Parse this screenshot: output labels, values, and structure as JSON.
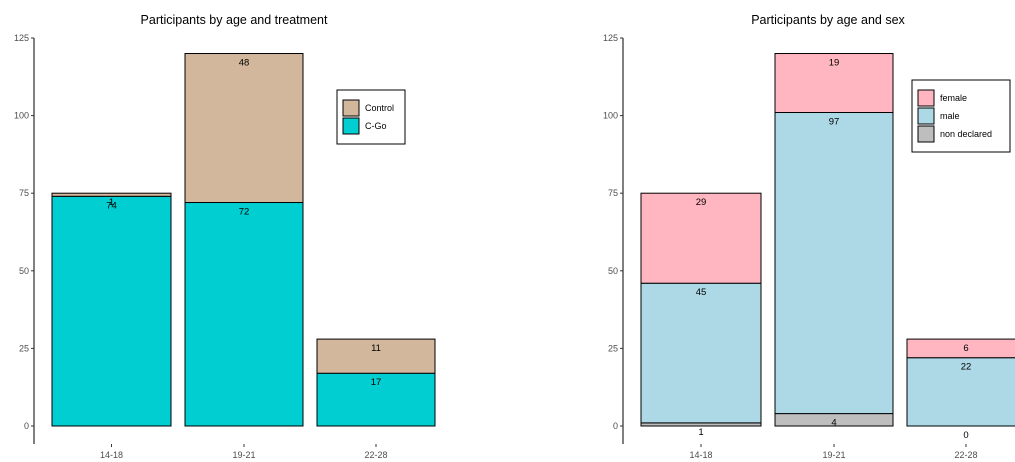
{
  "chart_data": [
    {
      "type": "bar",
      "stacked": true,
      "title": "Participants by age and treatment",
      "xlabel": "",
      "ylabel": "",
      "categories": [
        "14-18",
        "19-21",
        "22-28"
      ],
      "ylim": [
        0,
        125
      ],
      "yticks": [
        0,
        25,
        50,
        75,
        100,
        125
      ],
      "grid": false,
      "legend_position": "right",
      "series": [
        {
          "name": "C-Go",
          "values": [
            74,
            72,
            17
          ],
          "color": "#00CED1"
        },
        {
          "name": "Control",
          "values": [
            1,
            48,
            11
          ],
          "color": "#D2B79D"
        }
      ],
      "legend": [
        {
          "name": "Control",
          "color": "#D2B79D"
        },
        {
          "name": "C-Go",
          "color": "#00CED1"
        }
      ]
    },
    {
      "type": "bar",
      "stacked": true,
      "title": "Participants by age and sex",
      "xlabel": "",
      "ylabel": "",
      "categories": [
        "14-18",
        "19-21",
        "22-28"
      ],
      "ylim": [
        0,
        125
      ],
      "yticks": [
        0,
        25,
        50,
        75,
        100,
        125
      ],
      "grid": false,
      "legend_position": "top-right",
      "series": [
        {
          "name": "non declared",
          "values": [
            1,
            4,
            0
          ],
          "color": "#BEBEBE"
        },
        {
          "name": "male",
          "values": [
            45,
            97,
            22
          ],
          "color": "#ADD8E6"
        },
        {
          "name": "female",
          "values": [
            29,
            19,
            6
          ],
          "color": "#FFB6C1"
        }
      ],
      "legend": [
        {
          "name": "female",
          "color": "#FFB6C1"
        },
        {
          "name": "male",
          "color": "#ADD8E6"
        },
        {
          "name": "non declared",
          "color": "#BEBEBE"
        }
      ]
    }
  ]
}
